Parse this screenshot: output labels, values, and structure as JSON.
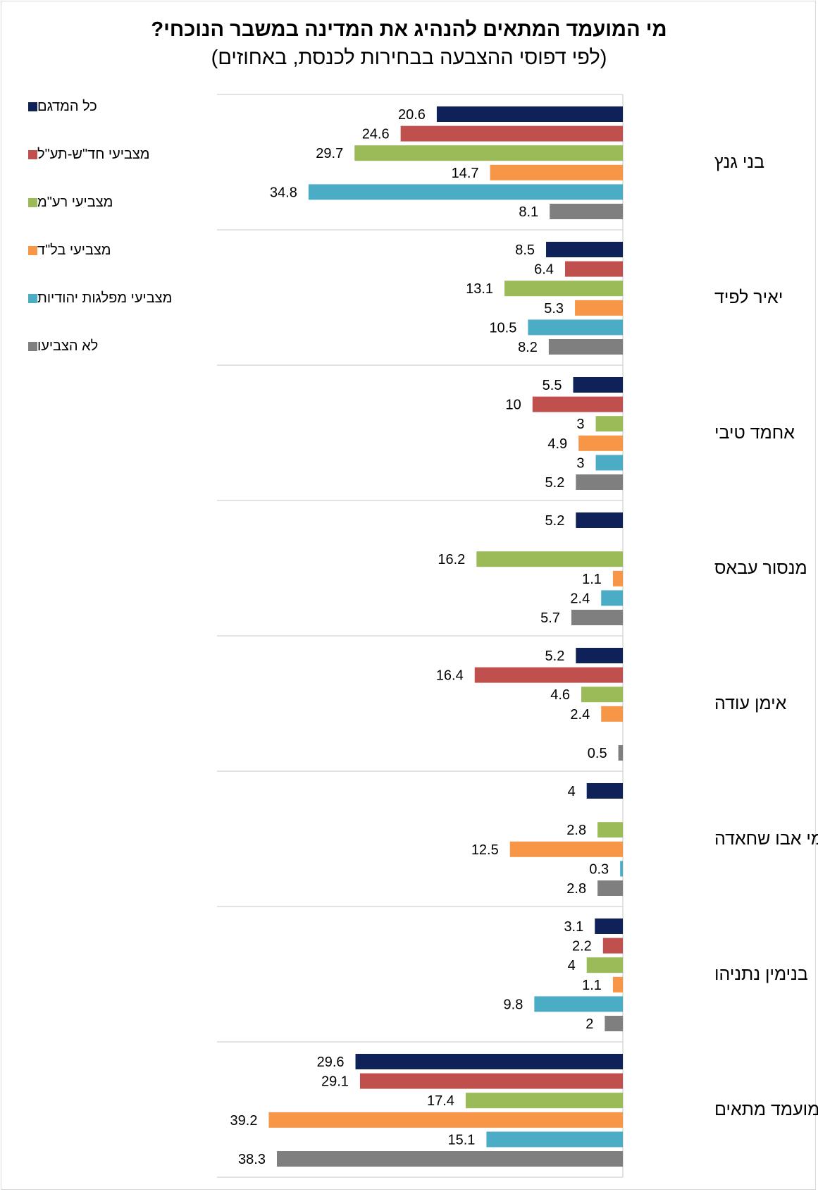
{
  "title": "מי המועמד המתאים להנהיג את המדינה במשבר הנוכחי?",
  "subtitle": "(לפי דפוסי ההצבעה בבחירות לכנסת, באחוזים)",
  "chart_data": {
    "type": "bar",
    "orientation": "horizontal",
    "categories": [
      "בני גנץ",
      "יאיר לפיד",
      "אחמד טיבי",
      "מנסור עבאס",
      "אימן עודה",
      "סאמי אבו שחאדה",
      "בנימין נתניהו",
      "אין היום מועמד מתאים"
    ],
    "series": [
      {
        "name": "כל המדגם",
        "color": "#0e2158",
        "values": [
          20.6,
          8.5,
          5.5,
          5.2,
          5.2,
          4,
          3.1,
          29.6
        ]
      },
      {
        "name": "מצביעי חד\"ש-תע\"ל",
        "color": "#c0504d",
        "values": [
          24.6,
          6.4,
          10,
          null,
          16.4,
          null,
          2.2,
          29.1
        ]
      },
      {
        "name": "מצביעי רע\"מ",
        "color": "#9bbb59",
        "values": [
          29.7,
          13.1,
          3,
          16.2,
          4.6,
          2.8,
          4,
          17.4
        ]
      },
      {
        "name": "מצביעי בל\"ד",
        "color": "#f79646",
        "values": [
          14.7,
          5.3,
          4.9,
          1.1,
          2.4,
          12.5,
          1.1,
          39.2
        ]
      },
      {
        "name": "מצביעי מפלגות יהודיות",
        "color": "#4bacc6",
        "values": [
          34.8,
          10.5,
          3,
          2.4,
          null,
          0.3,
          9.8,
          15.1
        ]
      },
      {
        "name": "לא הצביעו",
        "color": "#7f7f7f",
        "values": [
          8.1,
          8.2,
          5.2,
          5.7,
          0.5,
          2.8,
          2,
          38.3
        ]
      }
    ],
    "xlim": [
      0,
      45
    ],
    "legend_position": "left",
    "grid": "category separators"
  }
}
